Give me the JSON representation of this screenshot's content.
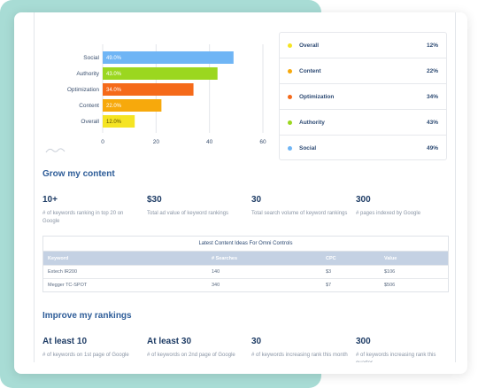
{
  "colors": {
    "social": "#6fb5f5",
    "authority": "#9bd71f",
    "optimization": "#f56a1a",
    "content": "#f7a90c",
    "overall": "#f5e423",
    "accent": "#2d5c98",
    "frame_bg": "#a8dcd5"
  },
  "chart_data": {
    "type": "bar",
    "orientation": "horizontal",
    "categories": [
      "Social",
      "Authority",
      "Optimization",
      "Content",
      "Overall"
    ],
    "values": [
      49.0,
      43.0,
      34.0,
      22.0,
      12.0
    ],
    "data_labels": [
      "49.0%",
      "43.0%",
      "34.0%",
      "22.0%",
      "12.0%"
    ],
    "colors": [
      "#6fb5f5",
      "#9bd71f",
      "#f56a1a",
      "#f7a90c",
      "#f5e423"
    ],
    "xlim": [
      0,
      60
    ],
    "xticks": [
      "0",
      "20",
      "40",
      "60"
    ],
    "grid": true
  },
  "legend": [
    {
      "name": "Overall",
      "value": "12%",
      "color": "#f5e423"
    },
    {
      "name": "Content",
      "value": "22%",
      "color": "#f7a90c"
    },
    {
      "name": "Optimization",
      "value": "34%",
      "color": "#f56a1a"
    },
    {
      "name": "Authority",
      "value": "43%",
      "color": "#9bd71f"
    },
    {
      "name": "Social",
      "value": "49%",
      "color": "#6fb5f5"
    }
  ],
  "grow": {
    "title": "Grow my content",
    "stats": [
      {
        "value": "10+",
        "desc": "# of keywords ranking in top 20 on Google"
      },
      {
        "value": "$30",
        "desc": "Total ad value of keyword rankings"
      },
      {
        "value": "30",
        "desc": "Total search volume of keyword rankings"
      },
      {
        "value": "300",
        "desc": "# pages indexed by Google"
      }
    ]
  },
  "table": {
    "title": "Latest Content Ideas For Omni Controls",
    "headers": [
      "Keyword",
      "# Searches",
      "CPC",
      "Value"
    ],
    "rows": [
      [
        "Extech IR200",
        "140",
        "$3",
        "$106"
      ],
      [
        "Megger TC-SPOT",
        "340",
        "$7",
        "$506"
      ]
    ]
  },
  "improve": {
    "title": "Improve my rankings",
    "stats": [
      {
        "value": "At least 10",
        "desc": "# of keywords on 1st page of Google"
      },
      {
        "value": "At least 30",
        "desc": "# of keywords on 2nd page of Google"
      },
      {
        "value": "30",
        "desc": "# of keywords increasing rank this month"
      },
      {
        "value": "300",
        "desc": "# of keywords increasing rank this quarter"
      }
    ]
  }
}
